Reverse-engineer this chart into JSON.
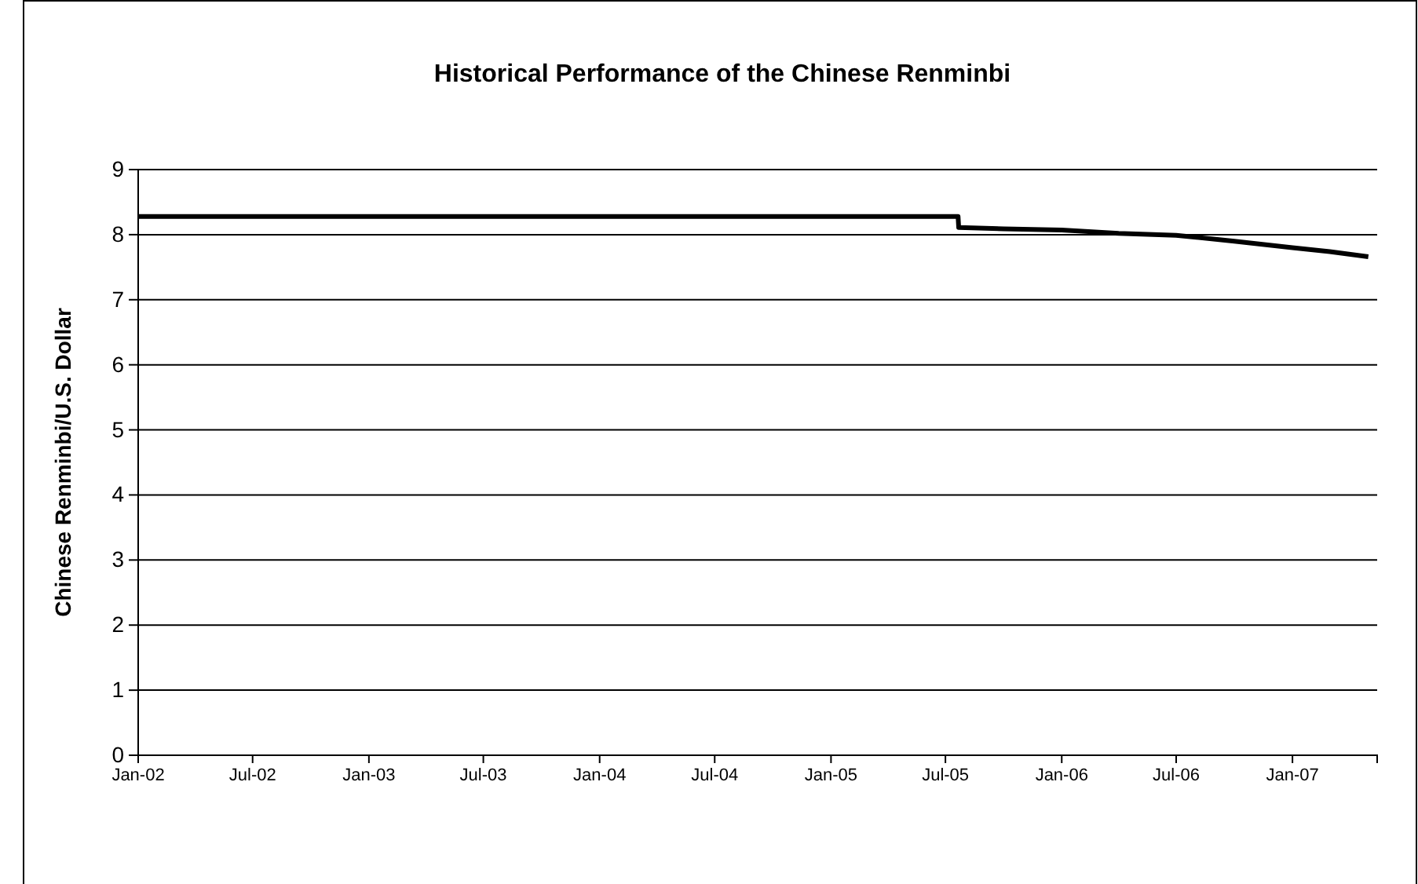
{
  "chart_data": {
    "type": "line",
    "title": "Historical Performance of the Chinese Renminbi",
    "ylabel": "Chinese Renminbi/U.S. Dollar",
    "x": [
      "2002-01-01",
      "2005-07-21",
      "2005-07-22",
      "2005-10-01",
      "2006-01-01",
      "2006-04-01",
      "2006-07-01",
      "2006-10-01",
      "2007-01-01",
      "2007-03-01",
      "2007-05-01"
    ],
    "series": [
      {
        "color": "#000000",
        "values": [
          8.28,
          8.28,
          8.11,
          8.09,
          8.07,
          8.02,
          7.99,
          7.9,
          7.8,
          7.74,
          7.66
        ]
      }
    ],
    "xlim": [
      "2002-01-01",
      "2007-05-15"
    ],
    "xticks": [
      {
        "value": "2002-01-01",
        "label": "Jan-02"
      },
      {
        "value": "2002-07-01",
        "label": "Jul-02"
      },
      {
        "value": "2003-01-01",
        "label": "Jan-03"
      },
      {
        "value": "2003-07-01",
        "label": "Jul-03"
      },
      {
        "value": "2004-01-01",
        "label": "Jan-04"
      },
      {
        "value": "2004-07-01",
        "label": "Jul-04"
      },
      {
        "value": "2005-01-01",
        "label": "Jan-05"
      },
      {
        "value": "2005-07-01",
        "label": "Jul-05"
      },
      {
        "value": "2006-01-01",
        "label": "Jan-06"
      },
      {
        "value": "2006-07-01",
        "label": "Jul-06"
      },
      {
        "value": "2007-01-01",
        "label": "Jan-07"
      }
    ],
    "ylim": [
      0,
      9
    ],
    "yticks": [
      0,
      1,
      2,
      3,
      4,
      5,
      6,
      7,
      8,
      9
    ],
    "grid": "y",
    "marker": "none",
    "line_style": "solid"
  }
}
